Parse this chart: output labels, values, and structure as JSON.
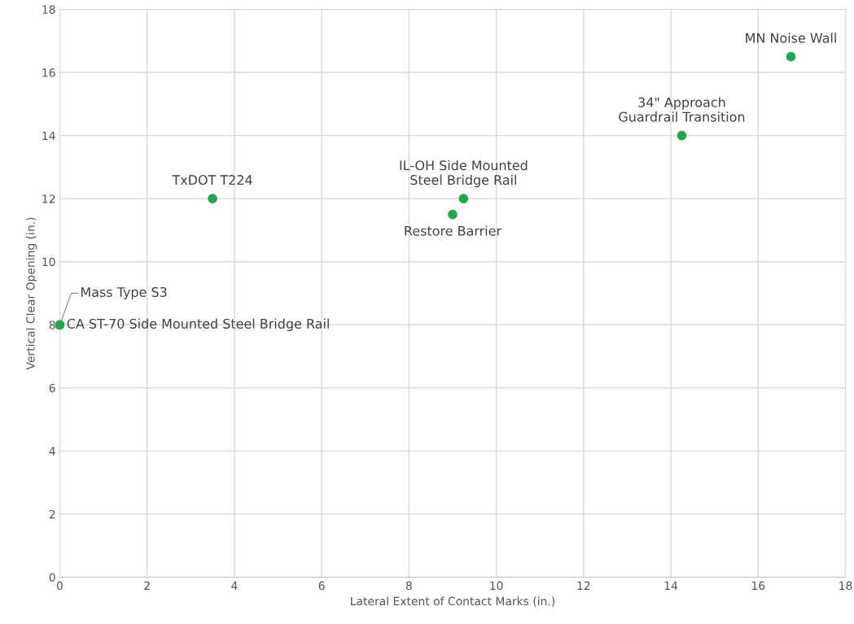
{
  "chart_data": {
    "type": "scatter",
    "xlabel": "Lateral Extent of Contact Marks (in.)",
    "ylabel": "Vertical Clear Opening (in.)",
    "series": [
      {
        "color": "#1ea84a",
        "x": [
          0,
          0,
          3.5,
          9.25,
          9,
          14.25,
          16.75
        ],
        "values": [
          8,
          8,
          12,
          12,
          11.5,
          14,
          16.5
        ]
      }
    ],
    "annotations": [
      {
        "text": "Mass Type S3",
        "x": 0,
        "y": 8
      },
      {
        "text": "CA ST-70 Side Mounted Steel Bridge Rail",
        "x": 0,
        "y": 8
      },
      {
        "text": "TxDOT T224",
        "x": 3.5,
        "y": 12
      },
      {
        "text": "IL-OH Side Mounted\nSteel Bridge Rail",
        "x": 9.25,
        "y": 12
      },
      {
        "text": "Restore Barrier",
        "x": 9,
        "y": 11.5
      },
      {
        "text": "34\" Approach\nGuardrail Transition",
        "x": 14.25,
        "y": 14
      },
      {
        "text": "MN Noise Wall",
        "x": 16.75,
        "y": 16.5
      }
    ],
    "xlim": [
      0,
      18
    ],
    "xticks": [
      0,
      2,
      4,
      6,
      8,
      10,
      12,
      14,
      16,
      18
    ],
    "ylim": [
      0,
      18
    ],
    "yticks": [
      0,
      2,
      4,
      6,
      8,
      10,
      12,
      14,
      16,
      18
    ],
    "grid": true,
    "marker": "circle"
  }
}
